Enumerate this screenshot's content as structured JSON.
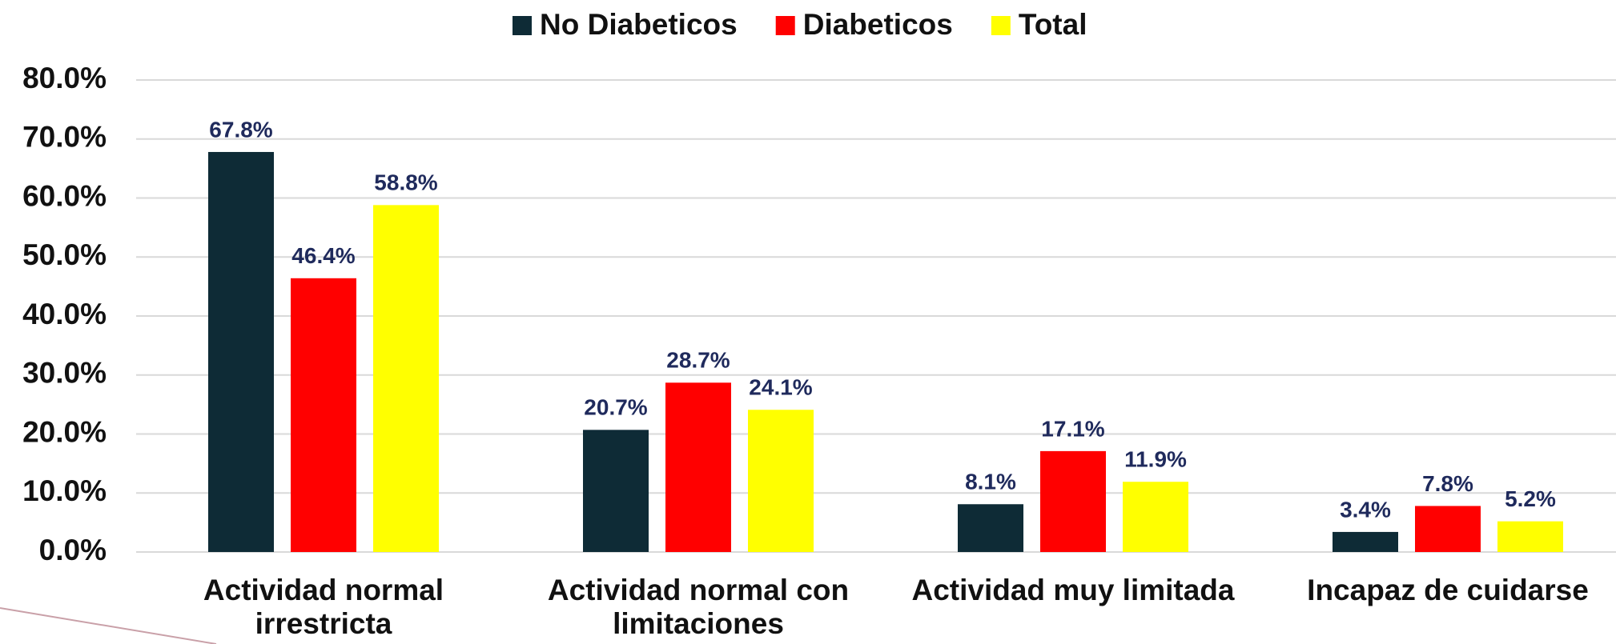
{
  "chart_data": {
    "type": "bar",
    "categories": [
      "Actividad normal irrestricta",
      "Actividad normal con limitaciones",
      "Actividad muy limitada",
      "Incapaz de cuidarse"
    ],
    "series": [
      {
        "name": "No Diabeticos",
        "color": "#0e2b36",
        "values": [
          67.8,
          20.7,
          8.1,
          3.4
        ],
        "value_labels": [
          "67.8%",
          "20.7%",
          "8.1%",
          "3.4%"
        ]
      },
      {
        "name": "Diabeticos",
        "color": "#ff0000",
        "values": [
          46.4,
          28.7,
          17.1,
          7.8
        ],
        "value_labels": [
          "46.4%",
          "28.7%",
          "17.1%",
          "7.8%"
        ]
      },
      {
        "name": "Total",
        "color": "#ffff00",
        "values": [
          58.8,
          24.1,
          11.9,
          5.2
        ],
        "value_labels": [
          "58.8%",
          "24.1%",
          "11.9%",
          "5.2%"
        ]
      }
    ],
    "ylim": [
      0,
      80
    ],
    "yticks": [
      {
        "value": 0,
        "label": "0.0%"
      },
      {
        "value": 10,
        "label": "10.0%"
      },
      {
        "value": 20,
        "label": "20.0%"
      },
      {
        "value": 30,
        "label": "30.0%"
      },
      {
        "value": 40,
        "label": "40.0%"
      },
      {
        "value": 50,
        "label": "50.0%"
      },
      {
        "value": 60,
        "label": "60.0%"
      },
      {
        "value": 70,
        "label": "70.0%"
      },
      {
        "value": 80,
        "label": "80.0%"
      }
    ],
    "grid": true,
    "legend": "top"
  }
}
